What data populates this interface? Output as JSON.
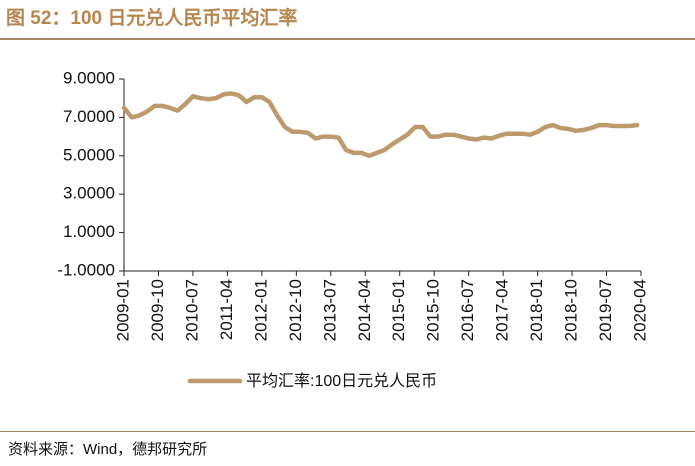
{
  "header": {
    "figure_title": "图 52：100 日元兑人民币平均汇率"
  },
  "footer": {
    "source_note": "资料来源：Wind，德邦研究所"
  },
  "chart_data": {
    "type": "line",
    "title": "图 52：100 日元兑人民币平均汇率",
    "xlabel": "",
    "ylabel": "",
    "ylim": [
      -1.0,
      9.0
    ],
    "y_ticks": [
      "9.0000",
      "7.0000",
      "5.0000",
      "3.0000",
      "1.0000",
      "-1.0000"
    ],
    "y_tick_values": [
      9,
      7,
      5,
      3,
      1,
      -1
    ],
    "x_ticks": [
      "2009-01",
      "2009-10",
      "2010-07",
      "2011-04",
      "2012-01",
      "2012-10",
      "2013-07",
      "2014-04",
      "2015-01",
      "2015-10",
      "2016-07",
      "2017-04",
      "2018-01",
      "2018-10",
      "2019-07",
      "2020-04"
    ],
    "x_range_months": [
      0,
      135
    ],
    "grid": false,
    "legend": {
      "position": "bottom",
      "entries": [
        "平均汇率:100日元兑人民币"
      ]
    },
    "colors": {
      "line": "#bd9a6c",
      "axis": "#222222",
      "title": "#b7864f",
      "rule": "#a5875e"
    },
    "series": [
      {
        "name": "平均汇率:100日元兑人民币",
        "month_index": [
          0,
          2,
          4,
          6,
          8,
          10,
          12,
          14,
          16,
          18,
          20,
          22,
          24,
          26,
          28,
          30,
          32,
          34,
          36,
          38,
          40,
          42,
          44,
          46,
          48,
          50,
          52,
          54,
          56,
          58,
          60,
          62,
          64,
          66,
          68,
          70,
          72,
          74,
          76,
          78,
          80,
          82,
          84,
          86,
          88,
          90,
          92,
          94,
          96,
          98,
          100,
          102,
          104,
          106,
          108,
          110,
          112,
          114,
          116,
          118,
          120,
          122,
          124,
          126,
          128,
          130,
          132,
          134
        ],
        "values": [
          7.5,
          7.0,
          7.1,
          7.3,
          7.6,
          7.6,
          7.5,
          7.35,
          7.7,
          8.1,
          8.0,
          7.95,
          8.0,
          8.2,
          8.25,
          8.15,
          7.8,
          8.05,
          8.05,
          7.8,
          7.1,
          6.5,
          6.25,
          6.25,
          6.2,
          5.9,
          6.0,
          6.0,
          5.95,
          5.3,
          5.15,
          5.15,
          5.0,
          5.15,
          5.3,
          5.6,
          5.85,
          6.1,
          6.5,
          6.5,
          6.0,
          6.0,
          6.1,
          6.1,
          6.0,
          5.9,
          5.85,
          5.95,
          5.9,
          6.05,
          6.15,
          6.15,
          6.15,
          6.1,
          6.25,
          6.5,
          6.6,
          6.45,
          6.4,
          6.3,
          6.35,
          6.45,
          6.6,
          6.6,
          6.55,
          6.55,
          6.55,
          6.6
        ]
      }
    ]
  }
}
